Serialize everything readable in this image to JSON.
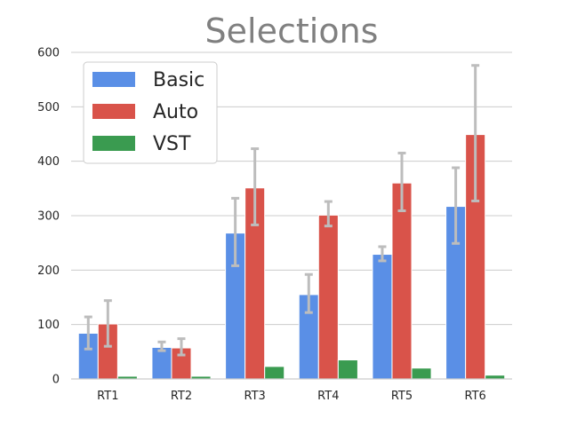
{
  "chart_data": {
    "type": "bar",
    "title": "Selections",
    "xlabel": "",
    "ylabel": "",
    "categories": [
      "RT1",
      "RT2",
      "RT3",
      "RT4",
      "RT5",
      "RT6"
    ],
    "ylim": [
      0,
      600
    ],
    "yticks": [
      0,
      100,
      200,
      300,
      400,
      500,
      600
    ],
    "grid": true,
    "legend_position": "top-left",
    "series": [
      {
        "name": "Basic",
        "color": "#5a8fe6",
        "values": [
          84,
          58,
          268,
          155,
          229,
          317
        ],
        "error": [
          [
            55,
            114
          ],
          [
            52,
            68
          ],
          [
            208,
            332
          ],
          [
            122,
            192
          ],
          [
            217,
            243
          ],
          [
            249,
            388
          ]
        ]
      },
      {
        "name": "Auto",
        "color": "#d9534a",
        "values": [
          101,
          57,
          351,
          301,
          360,
          449
        ],
        "error": [
          [
            60,
            144
          ],
          [
            44,
            74
          ],
          [
            283,
            423
          ],
          [
            281,
            326
          ],
          [
            309,
            415
          ],
          [
            327,
            576
          ]
        ]
      },
      {
        "name": "VST",
        "color": "#3a9b50",
        "values": [
          5,
          5,
          23,
          35,
          20,
          7
        ],
        "error": null
      }
    ]
  }
}
